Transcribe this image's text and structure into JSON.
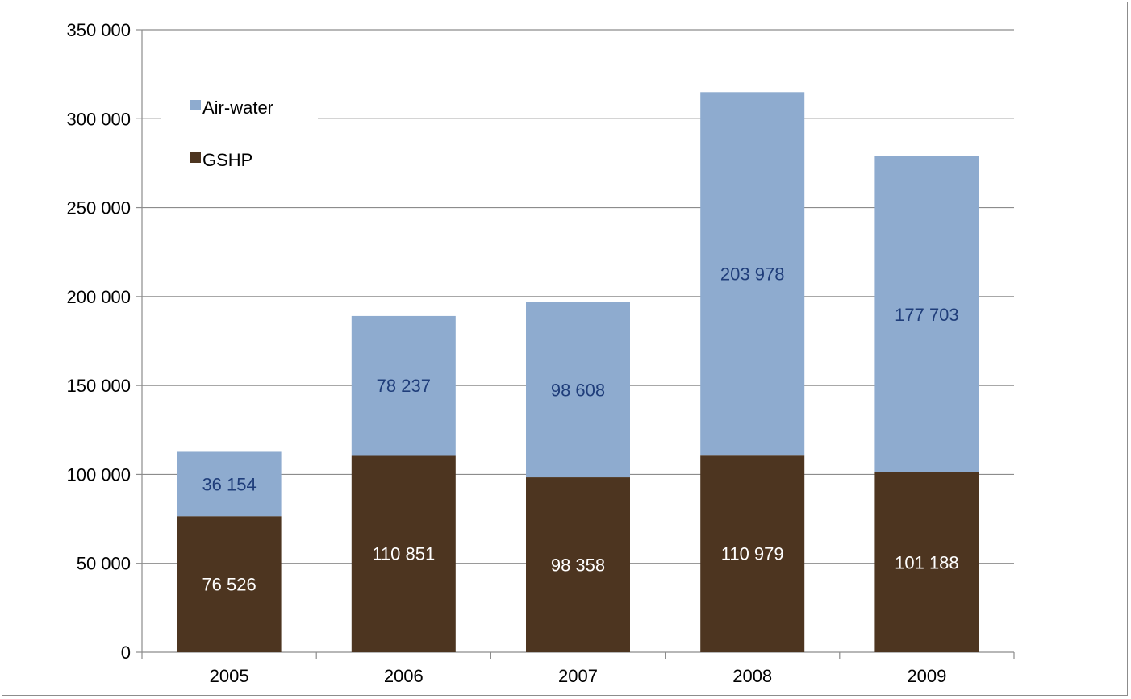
{
  "chart_data": {
    "type": "bar",
    "stacked": true,
    "categories": [
      "2005",
      "2006",
      "2007",
      "2008",
      "2009"
    ],
    "series": [
      {
        "name": "GSHP",
        "values": [
          76526,
          110851,
          98358,
          110979,
          101188
        ],
        "labels": [
          "76 526",
          "110 851",
          "98 358",
          "110 979",
          "101 188"
        ],
        "color": "#4d3520",
        "label_color": "#ffffff"
      },
      {
        "name": "Air-water",
        "values": [
          36154,
          78237,
          98608,
          203978,
          177703
        ],
        "labels": [
          "36 154",
          "78 237",
          "98 608",
          "203 978",
          "177 703"
        ],
        "color": "#8eabcf",
        "label_color": "#1f3d7a"
      }
    ],
    "title": "",
    "xlabel": "",
    "ylabel": "",
    "ylim": [
      0,
      350000
    ],
    "yticks": [
      0,
      50000,
      100000,
      150000,
      200000,
      250000,
      300000,
      350000
    ],
    "ytick_labels": [
      "0",
      "50 000",
      "100 000",
      "150 000",
      "200 000",
      "250 000",
      "300 000",
      "350 000"
    ],
    "grid": true,
    "legend": {
      "placement": "top-left",
      "order": [
        "Air-water",
        "GSHP"
      ]
    }
  }
}
